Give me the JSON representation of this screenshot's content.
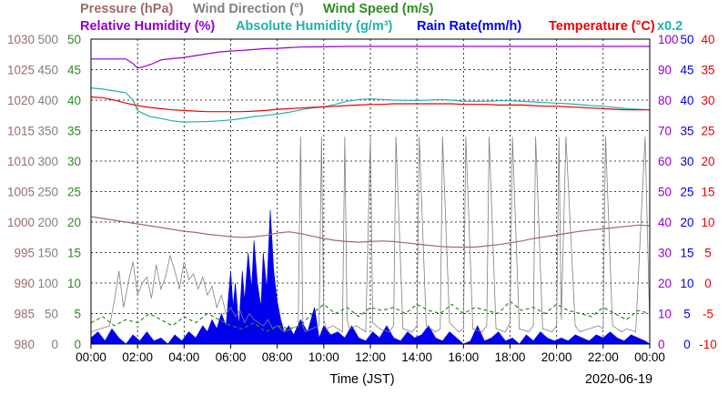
{
  "chart_data": {
    "type": "line",
    "date": "2020-06-19",
    "xlabel": "Time (JST)",
    "x_ticks": [
      "00:00",
      "02:00",
      "04:00",
      "06:00",
      "08:00",
      "10:00",
      "12:00",
      "14:00",
      "16:00",
      "18:00",
      "20:00",
      "22:00",
      "00:00"
    ],
    "grid": true,
    "legend_placement": "top",
    "axes": [
      {
        "id": "pressure",
        "side": "left",
        "range": [
          980,
          1030
        ],
        "ticks": [
          980,
          985,
          990,
          995,
          1000,
          1005,
          1010,
          1015,
          1020,
          1025,
          1030
        ],
        "color": "#9e6b6b"
      },
      {
        "id": "wind_direction",
        "side": "left",
        "range": [
          0,
          500
        ],
        "ticks": [
          0,
          50,
          100,
          150,
          200,
          250,
          300,
          350,
          400,
          450,
          500
        ],
        "color": "#808080"
      },
      {
        "id": "wind_speed",
        "side": "left",
        "range": [
          0,
          50
        ],
        "ticks": [
          0,
          5,
          10,
          15,
          20,
          25,
          30,
          35,
          40,
          45,
          50
        ],
        "color": "#2e8b22"
      },
      {
        "id": "humidity",
        "side": "right",
        "range": [
          0,
          100
        ],
        "ticks": [
          0,
          10,
          20,
          30,
          40,
          50,
          60,
          70,
          80,
          90,
          100
        ],
        "color": "#9400d3"
      },
      {
        "id": "rain_rate",
        "side": "right",
        "range": [
          0,
          50
        ],
        "ticks": [
          0,
          5,
          10,
          15,
          20,
          25,
          30,
          35,
          40,
          45,
          50
        ],
        "color": "#0000ee"
      },
      {
        "id": "temperature",
        "side": "right",
        "range": [
          -10,
          40
        ],
        "ticks": [
          -10,
          -5,
          0,
          5,
          10,
          15,
          20,
          25,
          30,
          35,
          40
        ],
        "color": "#ee0000"
      }
    ],
    "legend": [
      {
        "label": "Pressure (hPa)",
        "color": "#9e6b6b",
        "row": 1
      },
      {
        "label": "Wind Direction (°)",
        "color": "#808080",
        "row": 1
      },
      {
        "label": "Wind Speed (m/s)",
        "color": "#2e8b22",
        "row": 1
      },
      {
        "label": "Relative Humidity (%)",
        "color": "#9400d3",
        "row": 2
      },
      {
        "label": "Absolute Humidity (g/m³)",
        "color": "#20b2aa",
        "row": 2
      },
      {
        "label": "Rain Rate(mm/h)",
        "color": "#0000ee",
        "row": 2
      },
      {
        "label": "Temperature (°C)",
        "color": "#ee0000",
        "row": 2
      }
    ],
    "scale_note": "x0.2",
    "series": [
      {
        "id": "pressure",
        "axis": "pressure",
        "style": "line",
        "color": "#9e6b6b",
        "x": [
          0,
          0.5,
          1,
          1.5,
          2,
          2.5,
          3,
          3.5,
          4,
          4.5,
          5,
          5.5,
          6,
          6.5,
          7,
          7.5,
          8,
          8.5,
          9,
          9.5,
          10,
          10.5,
          11,
          11.5,
          12,
          12.5,
          13,
          13.5,
          14,
          14.5,
          15,
          15.5,
          16,
          16.5,
          17,
          17.5,
          18,
          18.5,
          19,
          19.5,
          20,
          20.5,
          21,
          21.5,
          22,
          22.5,
          23,
          23.5,
          24
        ],
        "y": [
          1000.9,
          1000.6,
          1000.3,
          1000.0,
          999.7,
          999.4,
          999.1,
          998.8,
          998.5,
          998.3,
          998.0,
          997.8,
          997.6,
          997.5,
          997.6,
          997.8,
          998.2,
          998.4,
          998.1,
          997.7,
          997.3,
          997.0,
          996.8,
          996.7,
          996.8,
          996.9,
          996.8,
          996.6,
          996.4,
          996.2,
          996.0,
          995.9,
          995.9,
          995.9,
          996.1,
          996.3,
          996.6,
          996.9,
          997.3,
          997.6,
          997.9,
          998.2,
          998.5,
          998.7,
          998.9,
          999.1,
          999.3,
          999.5,
          999.4
        ]
      },
      {
        "id": "temperature",
        "axis": "temperature",
        "style": "line",
        "color": "#ee0000",
        "x": [
          0,
          0.5,
          1,
          1.5,
          2,
          2.5,
          3,
          3.5,
          4,
          4.5,
          5,
          5.5,
          6,
          6.5,
          7,
          7.5,
          8,
          8.5,
          9,
          9.5,
          10,
          10.5,
          11,
          11.5,
          12,
          12.5,
          13,
          13.5,
          14,
          14.5,
          15,
          15.5,
          16,
          16.5,
          17,
          17.5,
          18,
          18.5,
          19,
          19.5,
          20,
          20.5,
          21,
          21.5,
          22,
          22.5,
          23,
          23.5,
          24
        ],
        "y": [
          30.5,
          30.4,
          30.0,
          29.5,
          29.1,
          28.8,
          28.6,
          28.4,
          28.3,
          28.2,
          28.1,
          28.1,
          28.1,
          28.1,
          28.2,
          28.3,
          28.5,
          28.6,
          28.7,
          28.8,
          28.9,
          29.0,
          29.1,
          29.2,
          29.3,
          29.3,
          29.4,
          29.4,
          29.4,
          29.4,
          29.4,
          29.4,
          29.3,
          29.3,
          29.3,
          29.2,
          29.2,
          29.2,
          29.1,
          29.0,
          29.0,
          28.9,
          28.8,
          28.7,
          28.6,
          28.5,
          28.4,
          28.4,
          28.4
        ]
      },
      {
        "id": "relative_humidity",
        "axis": "humidity",
        "style": "line",
        "color": "#9400d3",
        "x": [
          0,
          0.5,
          1,
          1.5,
          1.8,
          2.0,
          2.3,
          2.6,
          3,
          3.5,
          4,
          4.5,
          5,
          5.5,
          6,
          6.5,
          7,
          7.5,
          8,
          8.5,
          9,
          10,
          11,
          12,
          13,
          14,
          15,
          16,
          17,
          18,
          19,
          20,
          21,
          22,
          23,
          24
        ],
        "y": [
          93.5,
          93.5,
          93.5,
          93.5,
          92.0,
          90.5,
          91.0,
          91.8,
          93.2,
          93.6,
          94.0,
          94.6,
          95.2,
          95.8,
          96.1,
          96.3,
          96.6,
          96.9,
          97.0,
          97.2,
          97.4,
          97.5,
          97.6,
          97.6,
          97.6,
          97.6,
          97.6,
          97.6,
          97.6,
          97.6,
          97.6,
          97.6,
          97.6,
          97.6,
          97.6,
          97.6
        ]
      },
      {
        "id": "absolute_humidity",
        "axis": "humidity",
        "style": "line",
        "color": "#20b2aa",
        "x": [
          0,
          0.5,
          1,
          1.5,
          1.8,
          2.0,
          2.5,
          3,
          3.5,
          4,
          4.5,
          5,
          5.5,
          6,
          6.5,
          7,
          7.5,
          8,
          8.5,
          9,
          9.5,
          10,
          10.5,
          11,
          11.5,
          12,
          12.5,
          13,
          13.5,
          14,
          14.5,
          15,
          15.5,
          16,
          16.5,
          17,
          17.5,
          18,
          18.5,
          19,
          19.5,
          20,
          20.5,
          21,
          21.5,
          22,
          22.5,
          23,
          23.5,
          24
        ],
        "y": [
          84.0,
          83.6,
          83.0,
          82.4,
          80.0,
          76.5,
          74.7,
          74.0,
          73.2,
          72.8,
          72.9,
          73.0,
          73.2,
          73.5,
          74.0,
          74.6,
          75.0,
          75.4,
          76.0,
          76.8,
          77.4,
          77.8,
          78.6,
          79.6,
          80.2,
          80.4,
          80.2,
          80.0,
          79.9,
          79.9,
          80.0,
          80.2,
          80.0,
          79.6,
          79.6,
          79.6,
          79.8,
          79.8,
          79.6,
          79.4,
          79.2,
          79.0,
          78.8,
          78.5,
          78.2,
          78.0,
          77.6,
          77.2,
          77.0,
          76.8
        ]
      },
      {
        "id": "wind_direction",
        "axis": "wind_direction",
        "style": "line",
        "color": "#808080",
        "x": [
          0,
          0.4,
          0.8,
          1.0,
          1.2,
          1.4,
          1.6,
          1.8,
          2.0,
          2.2,
          2.4,
          2.6,
          2.8,
          3.0,
          3.2,
          3.4,
          3.6,
          3.8,
          4.0,
          4.2,
          4.4,
          4.6,
          4.8,
          5.0,
          5.2,
          5.4,
          5.6,
          5.8,
          6.0,
          6.2,
          6.4,
          6.6,
          6.8,
          7.0,
          7.2,
          7.4,
          7.6,
          7.8,
          8.0,
          8.3,
          8.6,
          8.9,
          9.0,
          9.1,
          9.2,
          9.5,
          9.8,
          9.9,
          10.0,
          10.1,
          10.4,
          10.8,
          10.9,
          11.0,
          11.1,
          11.4,
          11.8,
          12.0,
          12.1,
          12.4,
          12.8,
          13.0,
          13.1,
          13.4,
          13.8,
          14.0,
          14.1,
          14.4,
          14.8,
          15.0,
          15.1,
          15.4,
          15.8,
          16.0,
          16.1,
          16.4,
          16.8,
          17.0,
          17.1,
          17.4,
          17.8,
          18.0,
          18.1,
          18.4,
          18.8,
          19.0,
          19.1,
          19.4,
          19.8,
          20.0,
          20.1,
          20.2,
          20.4,
          20.8,
          21.0,
          21.4,
          21.8,
          22.0,
          22.1,
          22.4,
          22.8,
          23.0,
          23.4,
          23.8,
          24.0
        ],
        "y": [
          20,
          25,
          30,
          70,
          120,
          60,
          100,
          135,
          80,
          100,
          110,
          75,
          130,
          90,
          110,
          145,
          120,
          90,
          135,
          105,
          115,
          90,
          110,
          80,
          95,
          60,
          80,
          50,
          60,
          45,
          55,
          35,
          50,
          40,
          35,
          30,
          40,
          25,
          30,
          20,
          25,
          30,
          340,
          30,
          20,
          25,
          30,
          340,
          40,
          25,
          30,
          20,
          340,
          40,
          25,
          30,
          20,
          340,
          35,
          25,
          20,
          30,
          340,
          25,
          20,
          30,
          340,
          30,
          20,
          25,
          340,
          35,
          20,
          25,
          340,
          25,
          20,
          30,
          340,
          25,
          20,
          35,
          340,
          25,
          20,
          30,
          340,
          25,
          20,
          30,
          340,
          40,
          340,
          30,
          20,
          25,
          30,
          25,
          340,
          30,
          20,
          25,
          20,
          340,
          30
        ]
      },
      {
        "id": "wind_speed",
        "axis": "wind_speed",
        "style": "dashed",
        "color": "#2e8b22",
        "x": [
          0,
          0.5,
          1,
          1.5,
          2,
          2.5,
          3,
          3.5,
          4,
          4.5,
          5,
          5.5,
          6,
          6.5,
          7,
          7.5,
          8,
          8.5,
          9,
          9.5,
          10,
          10.5,
          11,
          11.5,
          12,
          12.5,
          13,
          13.5,
          14,
          14.5,
          15,
          15.5,
          16,
          16.5,
          17,
          17.5,
          18,
          18.5,
          19,
          19.5,
          20,
          20.5,
          21,
          21.5,
          22,
          22.5,
          23,
          23.5,
          24
        ],
        "y": [
          3.5,
          4.5,
          3.0,
          4.0,
          3.5,
          5.0,
          4.0,
          3.0,
          4.5,
          3.5,
          5.0,
          4.0,
          3.0,
          2.5,
          3.5,
          2.0,
          3.0,
          2.5,
          3.0,
          5.0,
          6.5,
          5.0,
          6.0,
          4.5,
          6.0,
          5.5,
          6.0,
          5.0,
          6.5,
          5.5,
          5.0,
          6.5,
          5.0,
          6.0,
          5.5,
          5.0,
          7.0,
          5.5,
          6.0,
          5.0,
          6.5,
          5.5,
          5.0,
          4.5,
          6.0,
          5.0,
          4.0,
          5.5,
          5.0
        ]
      },
      {
        "id": "rain_rate",
        "axis": "rain_rate",
        "style": "area",
        "color": "#0000ee",
        "x": [
          0,
          0.3,
          0.6,
          0.9,
          1.2,
          1.5,
          1.8,
          2.1,
          2.4,
          2.7,
          3.0,
          3.3,
          3.6,
          3.9,
          4.2,
          4.5,
          4.8,
          5.0,
          5.2,
          5.4,
          5.6,
          5.8,
          6.0,
          6.1,
          6.2,
          6.35,
          6.5,
          6.6,
          6.75,
          6.9,
          7.0,
          7.15,
          7.3,
          7.4,
          7.55,
          7.7,
          7.85,
          8.0,
          8.15,
          8.3,
          8.5,
          8.7,
          9.0,
          9.3,
          9.6,
          9.8,
          10.0,
          10.3,
          10.6,
          10.9,
          11.2,
          11.5,
          11.8,
          12.1,
          12.4,
          12.7,
          13.0,
          13.3,
          13.6,
          13.9,
          14.2,
          14.5,
          14.8,
          15.1,
          15.4,
          15.7,
          16.0,
          16.3,
          16.6,
          16.9,
          17.2,
          17.5,
          17.8,
          18.1,
          18.4,
          18.7,
          19.0,
          19.3,
          19.6,
          19.9,
          20.2,
          20.5,
          20.8,
          21.1,
          21.4,
          21.7,
          22.0,
          22.3,
          22.6,
          22.9,
          23.2,
          23.5,
          23.8,
          24.0
        ],
        "y": [
          1,
          2,
          0.5,
          2.5,
          1,
          0,
          1.5,
          0.5,
          2,
          0.5,
          1,
          0,
          1.5,
          0.5,
          2,
          1,
          3,
          2,
          4,
          2.5,
          5,
          3,
          12,
          6,
          10,
          3,
          12,
          7,
          15,
          9,
          17,
          10,
          6,
          15,
          9,
          22,
          12,
          7,
          4,
          2,
          3,
          1.5,
          4,
          2,
          6,
          1,
          3,
          1.5,
          2,
          1,
          3,
          1,
          0.5,
          2,
          1,
          3,
          1,
          0.5,
          2,
          1,
          1.5,
          3,
          1,
          0.5,
          2,
          1,
          0,
          0.5,
          3,
          0.5,
          1,
          2,
          0.5,
          1,
          0,
          1.5,
          0.5,
          2,
          1,
          0.5,
          1,
          0.5,
          1.5,
          1,
          0.5,
          1.5,
          1,
          2,
          1,
          0.5,
          1.5,
          1,
          0.5,
          0
        ]
      }
    ]
  }
}
